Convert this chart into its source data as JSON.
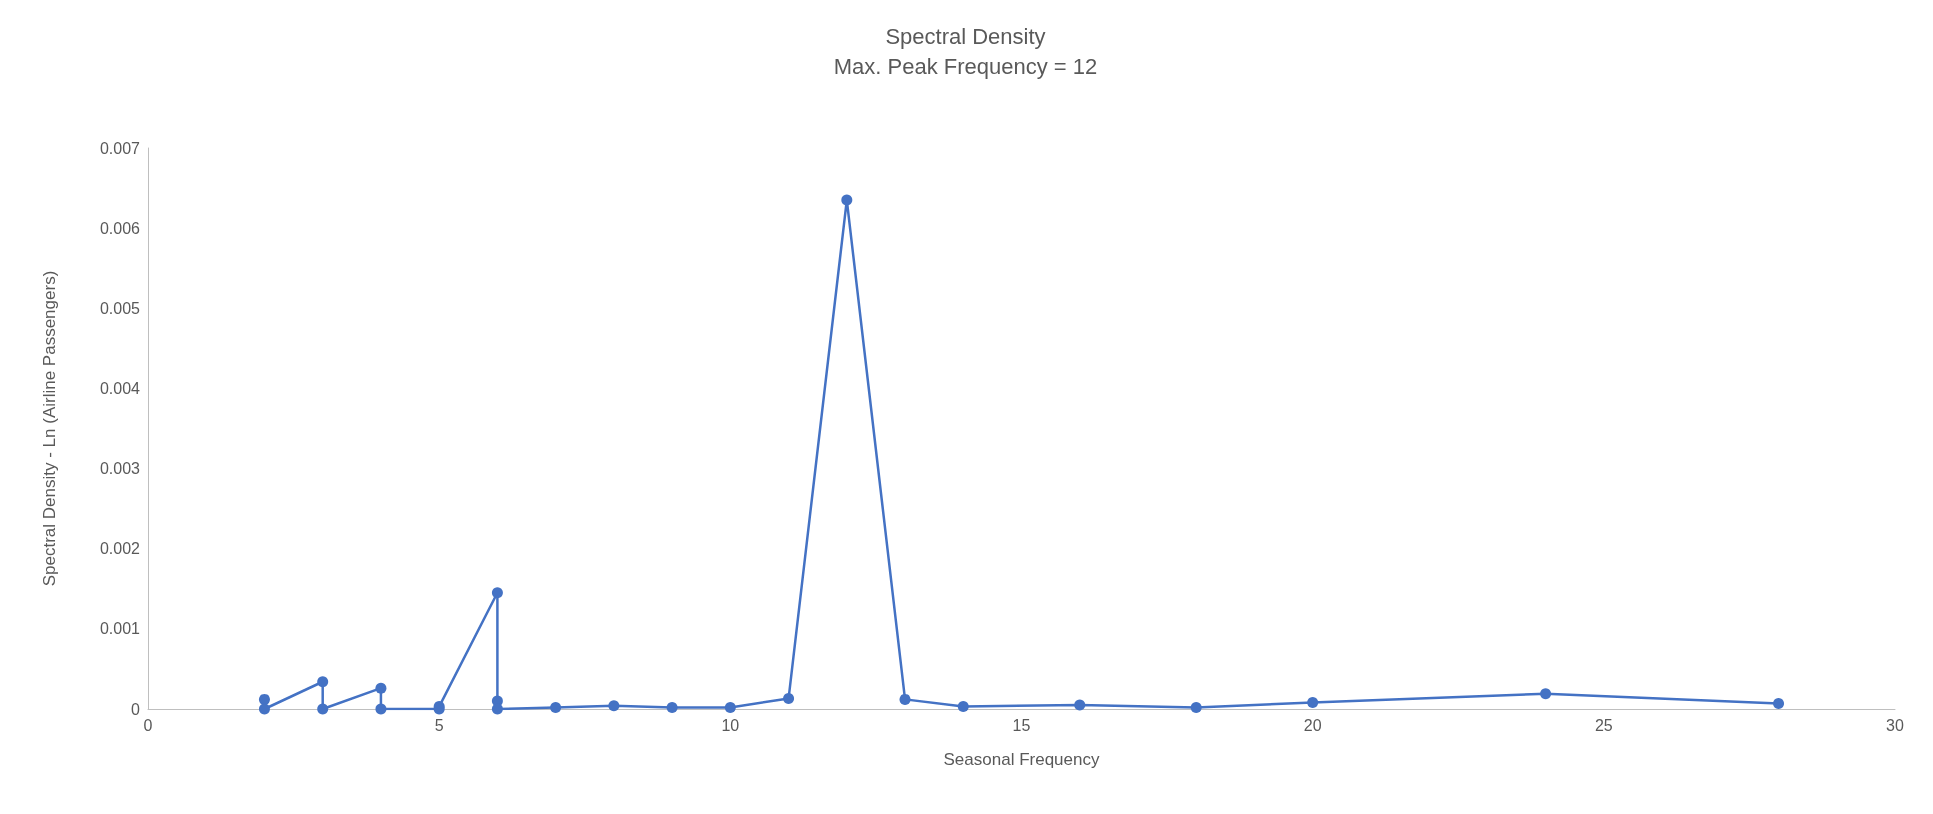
{
  "chart_data": {
    "type": "line",
    "title": "Spectral Density",
    "subtitle": "Max. Peak Frequency = 12",
    "xlabel": "Seasonal Frequency",
    "ylabel": "Spectral Density - Ln (Airline Passengers)",
    "series": [
      {
        "color": "#4472c4",
        "x": [
          2,
          2,
          3,
          3,
          4,
          4,
          5,
          5,
          6,
          6,
          6,
          7,
          8,
          9,
          10,
          11,
          12,
          13,
          14,
          16,
          18,
          20,
          24,
          28
        ],
        "values": [
          0.00012,
          0.0,
          0.00034,
          0.0,
          0.00026,
          0.0,
          0.0,
          3e-05,
          0.00145,
          0.0001,
          0.0,
          2e-05,
          4e-05,
          2e-05,
          2e-05,
          0.00013,
          0.00635,
          0.00012,
          3e-05,
          5e-05,
          2e-05,
          8e-05,
          0.00019,
          7e-05
        ]
      }
    ],
    "xlim": [
      0,
      30
    ],
    "xticks": [
      0,
      5,
      10,
      15,
      20,
      25,
      30
    ],
    "ylim": [
      0,
      0.007
    ],
    "yticks": [
      0,
      0.001,
      0.002,
      0.003,
      0.004,
      0.005,
      0.006,
      0.007
    ],
    "grid": false,
    "marker": "circle",
    "line_style": "solid"
  }
}
